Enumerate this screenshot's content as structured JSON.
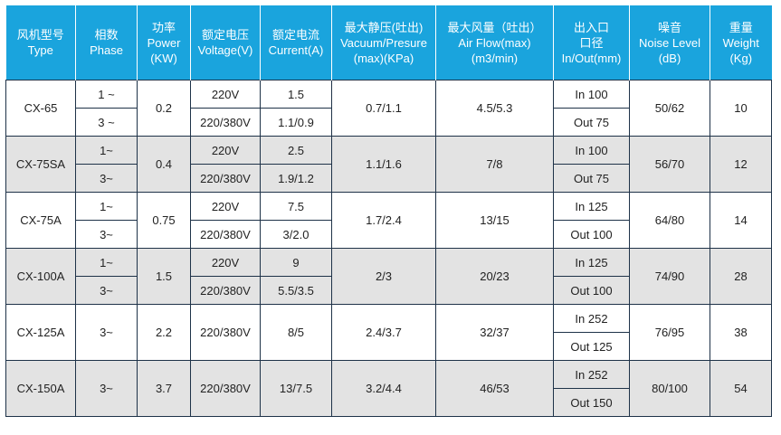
{
  "headers": [
    {
      "cn": "风机型号",
      "en": "Type"
    },
    {
      "cn": "相数",
      "en": "Phase"
    },
    {
      "cn": "功率",
      "en": "Power",
      "unit": "(KW)"
    },
    {
      "cn": "额定电压",
      "en": "Voltage(V)"
    },
    {
      "cn": "额定电流",
      "en": "Current(A)"
    },
    {
      "cn": "最大静压(吐出)",
      "en": "Vacuum/Presure",
      "unit": "(max)(KPa)"
    },
    {
      "cn": "最大风量（吐出）",
      "en": "Air Flow(max)",
      "unit": "(m3/min)"
    },
    {
      "cn": "出入口",
      "en": "口径",
      "unit": "In/Out(mm)"
    },
    {
      "cn": "噪音",
      "en": "Noise Level",
      "unit": "(dB)"
    },
    {
      "cn": "重量",
      "en": "Weight",
      "unit": "(Kg)"
    }
  ],
  "models": [
    {
      "type": "CX-65",
      "phases": [
        "1 ~",
        "3 ~"
      ],
      "power": "0.2",
      "voltages": [
        "220V",
        "220/380V"
      ],
      "currents": [
        "1.5",
        "1.1/0.9"
      ],
      "pressure": "0.7/1.1",
      "flow": "4.5/5.3",
      "ports": [
        "In 100",
        "Out 75"
      ],
      "noise": "50/62",
      "weight": "10"
    },
    {
      "type": "CX-75SA",
      "phases": [
        "1~",
        "3~"
      ],
      "power": "0.4",
      "voltages": [
        "220V",
        "220/380V"
      ],
      "currents": [
        "2.5",
        "1.9/1.2"
      ],
      "pressure": "1.1/1.6",
      "flow": "7/8",
      "ports": [
        "In 100",
        "Out 75"
      ],
      "noise": "56/70",
      "weight": "12"
    },
    {
      "type": "CX-75A",
      "phases": [
        "1~",
        "3~"
      ],
      "power": "0.75",
      "voltages": [
        "220V",
        "220/380V"
      ],
      "currents": [
        "7.5",
        "3/2.0"
      ],
      "pressure": "1.7/2.4",
      "flow": "13/15",
      "ports": [
        "In 125",
        "Out 100"
      ],
      "noise": "64/80",
      "weight": "14"
    },
    {
      "type": "CX-100A",
      "phases": [
        "1~",
        "3~"
      ],
      "power": "1.5",
      "voltages": [
        "220V",
        "220/380V"
      ],
      "currents": [
        "9",
        "5.5/3.5"
      ],
      "pressure": "2/3",
      "flow": "20/23",
      "ports": [
        "In 125",
        "Out 100"
      ],
      "noise": "74/90",
      "weight": "28"
    },
    {
      "type": "CX-125A",
      "phases": [
        "3~"
      ],
      "power": "2.2",
      "voltages": [
        "220/380V"
      ],
      "currents": [
        "8/5"
      ],
      "pressure": "2.4/3.7",
      "flow": "32/37",
      "ports": [
        "In 252",
        "Out 125"
      ],
      "noise": "76/95",
      "weight": "38"
    },
    {
      "type": "CX-150A",
      "phases": [
        "3~"
      ],
      "power": "3.7",
      "voltages": [
        "220/380V"
      ],
      "currents": [
        "13/7.5"
      ],
      "pressure": "3.2/4.4",
      "flow": "46/53",
      "ports": [
        "In 252",
        "Out 150"
      ],
      "noise": "80/100",
      "weight": "54"
    }
  ]
}
